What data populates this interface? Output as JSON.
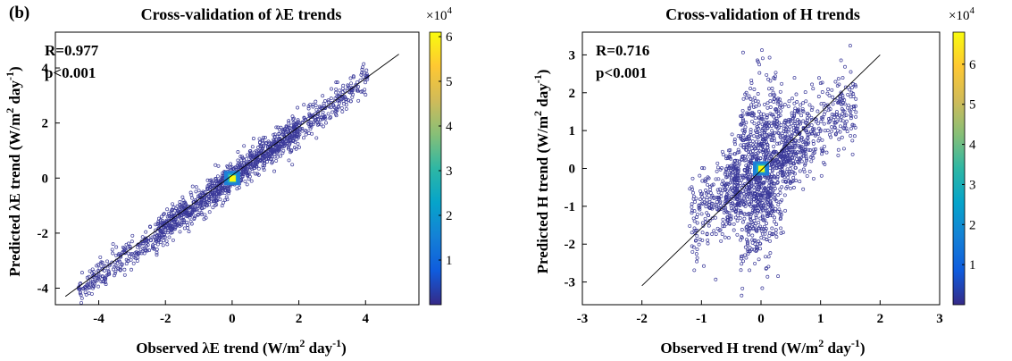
{
  "panel_label": "(b)",
  "colormap": [
    "#352a87",
    "#0f5cdd",
    "#1481d6",
    "#06a4ca",
    "#2eb7a4",
    "#87bf77",
    "#d1bb59",
    "#fec832",
    "#f9fb0e"
  ],
  "point_color": "#3b3a9a",
  "chart_data": [
    {
      "type": "scatter",
      "title": "Cross-validation of λE trends",
      "xlabel": {
        "text": "Observed λE trend (W/m",
        "sup1": "2",
        "mid": " day",
        "sup2": "-1",
        "end": ")"
      },
      "ylabel": {
        "text": "Predicted λE trend (W/m",
        "sup1": "2",
        "mid": " day",
        "sup2": "-1",
        "end": ")"
      },
      "xlim": [
        -5.3,
        5.6
      ],
      "ylim": [
        -4.6,
        5.3
      ],
      "xticks": [
        -4,
        -2,
        0,
        2,
        4
      ],
      "xtick_labels": [
        "-4",
        "-2",
        "0",
        "2",
        "4"
      ],
      "yticks": [
        -4,
        -2,
        0,
        2,
        4
      ],
      "ytick_labels": [
        "-4",
        "-2",
        "0",
        "2",
        "4"
      ],
      "stats": {
        "r": "R=0.977",
        "p": "p<0.001"
      },
      "fit_line": {
        "x": [
          -5.0,
          5.0
        ],
        "y": [
          -4.3,
          4.5
        ]
      },
      "density_cloud": {
        "slope": 0.9,
        "x_range": [
          -4.6,
          4.1
        ],
        "spread_sd": 0.35,
        "hotspot": [
          0.0,
          0.0
        ]
      },
      "colorbar": {
        "range": [
          0,
          61000
        ],
        "ticks": [
          10000,
          20000,
          30000,
          40000,
          50000,
          60000
        ],
        "tick_labels": [
          "1",
          "2",
          "3",
          "4",
          "5",
          "6"
        ],
        "exponent_base": "×10",
        "exponent": "4"
      },
      "grid": false,
      "legend": "none"
    },
    {
      "type": "scatter",
      "title": "Cross-validation of H trends",
      "xlabel": {
        "text": "Observed H trend (W/m",
        "sup1": "2",
        "mid": " day",
        "sup2": "-1",
        "end": ")"
      },
      "ylabel": {
        "text": "Predicted H trend (W/m",
        "sup1": "2",
        "mid": " day",
        "sup2": "-1",
        "end": ")"
      },
      "xlim": [
        -3.0,
        3.0
      ],
      "ylim": [
        -3.6,
        3.6
      ],
      "xticks": [
        -3,
        -2,
        -1,
        0,
        1,
        2,
        3
      ],
      "xtick_labels": [
        "-3",
        "-2",
        "-1",
        "0",
        "1",
        "2",
        "3"
      ],
      "yticks": [
        -3,
        -2,
        -1,
        0,
        1,
        2,
        3
      ],
      "ytick_labels": [
        "-3",
        "-2",
        "-1",
        "0",
        "1",
        "2",
        "3"
      ],
      "stats": {
        "r": "R=0.716",
        "p": "p<0.001"
      },
      "fit_line": {
        "x": [
          -2.0,
          2.0
        ],
        "y": [
          -3.1,
          3.0
        ]
      },
      "density_cloud": {
        "slope": 1.1,
        "x_range": [
          -1.2,
          1.6
        ],
        "spread_sd": 0.55,
        "hotspot": [
          0.0,
          0.0
        ]
      },
      "colorbar": {
        "range": [
          0,
          68000
        ],
        "ticks": [
          10000,
          20000,
          30000,
          40000,
          50000,
          60000
        ],
        "tick_labels": [
          "1",
          "2",
          "3",
          "4",
          "5",
          "6"
        ],
        "exponent_base": "×10",
        "exponent": "4"
      },
      "grid": false,
      "legend": "none"
    }
  ]
}
